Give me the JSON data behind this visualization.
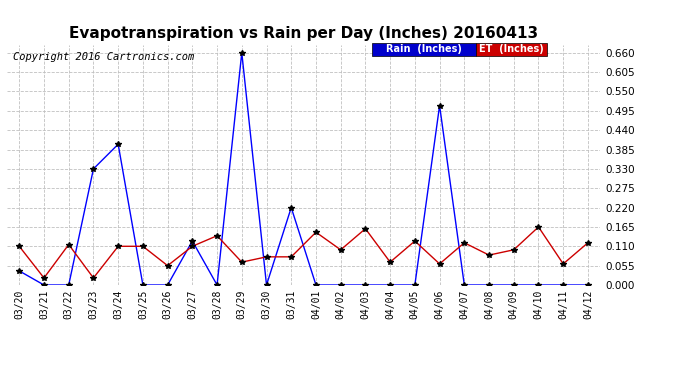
{
  "title": "Evapotranspiration vs Rain per Day (Inches) 20160413",
  "copyright": "Copyright 2016 Cartronics.com",
  "labels": [
    "03/20",
    "03/21",
    "03/22",
    "03/23",
    "03/24",
    "03/25",
    "03/26",
    "03/27",
    "03/28",
    "03/29",
    "03/30",
    "03/31",
    "04/01",
    "04/02",
    "04/03",
    "04/04",
    "04/05",
    "04/06",
    "04/07",
    "04/08",
    "04/09",
    "04/10",
    "04/11",
    "04/12"
  ],
  "rain": [
    0.04,
    0.0,
    0.0,
    0.33,
    0.4,
    0.0,
    0.0,
    0.125,
    0.0,
    0.66,
    0.0,
    0.22,
    0.0,
    0.0,
    0.0,
    0.0,
    0.0,
    0.51,
    0.0,
    0.0,
    0.0,
    0.0,
    0.0,
    0.0
  ],
  "et": [
    0.11,
    0.02,
    0.115,
    0.02,
    0.11,
    0.11,
    0.055,
    0.11,
    0.14,
    0.065,
    0.08,
    0.08,
    0.15,
    0.1,
    0.16,
    0.065,
    0.125,
    0.06,
    0.12,
    0.085,
    0.1,
    0.165,
    0.06,
    0.12
  ],
  "rain_color": "#0000ff",
  "et_color": "#cc0000",
  "background_color": "#ffffff",
  "grid_color": "#c0c0c0",
  "ylim": [
    0.0,
    0.682
  ],
  "yticks": [
    0.0,
    0.055,
    0.11,
    0.165,
    0.22,
    0.275,
    0.33,
    0.385,
    0.44,
    0.495,
    0.55,
    0.605,
    0.66
  ],
  "title_fontsize": 11,
  "copyright_fontsize": 7.5,
  "legend_rain_bg": "#0000cc",
  "legend_et_bg": "#cc0000",
  "legend_rain_text": "Rain  (Inches)",
  "legend_et_text": "ET  (Inches)"
}
